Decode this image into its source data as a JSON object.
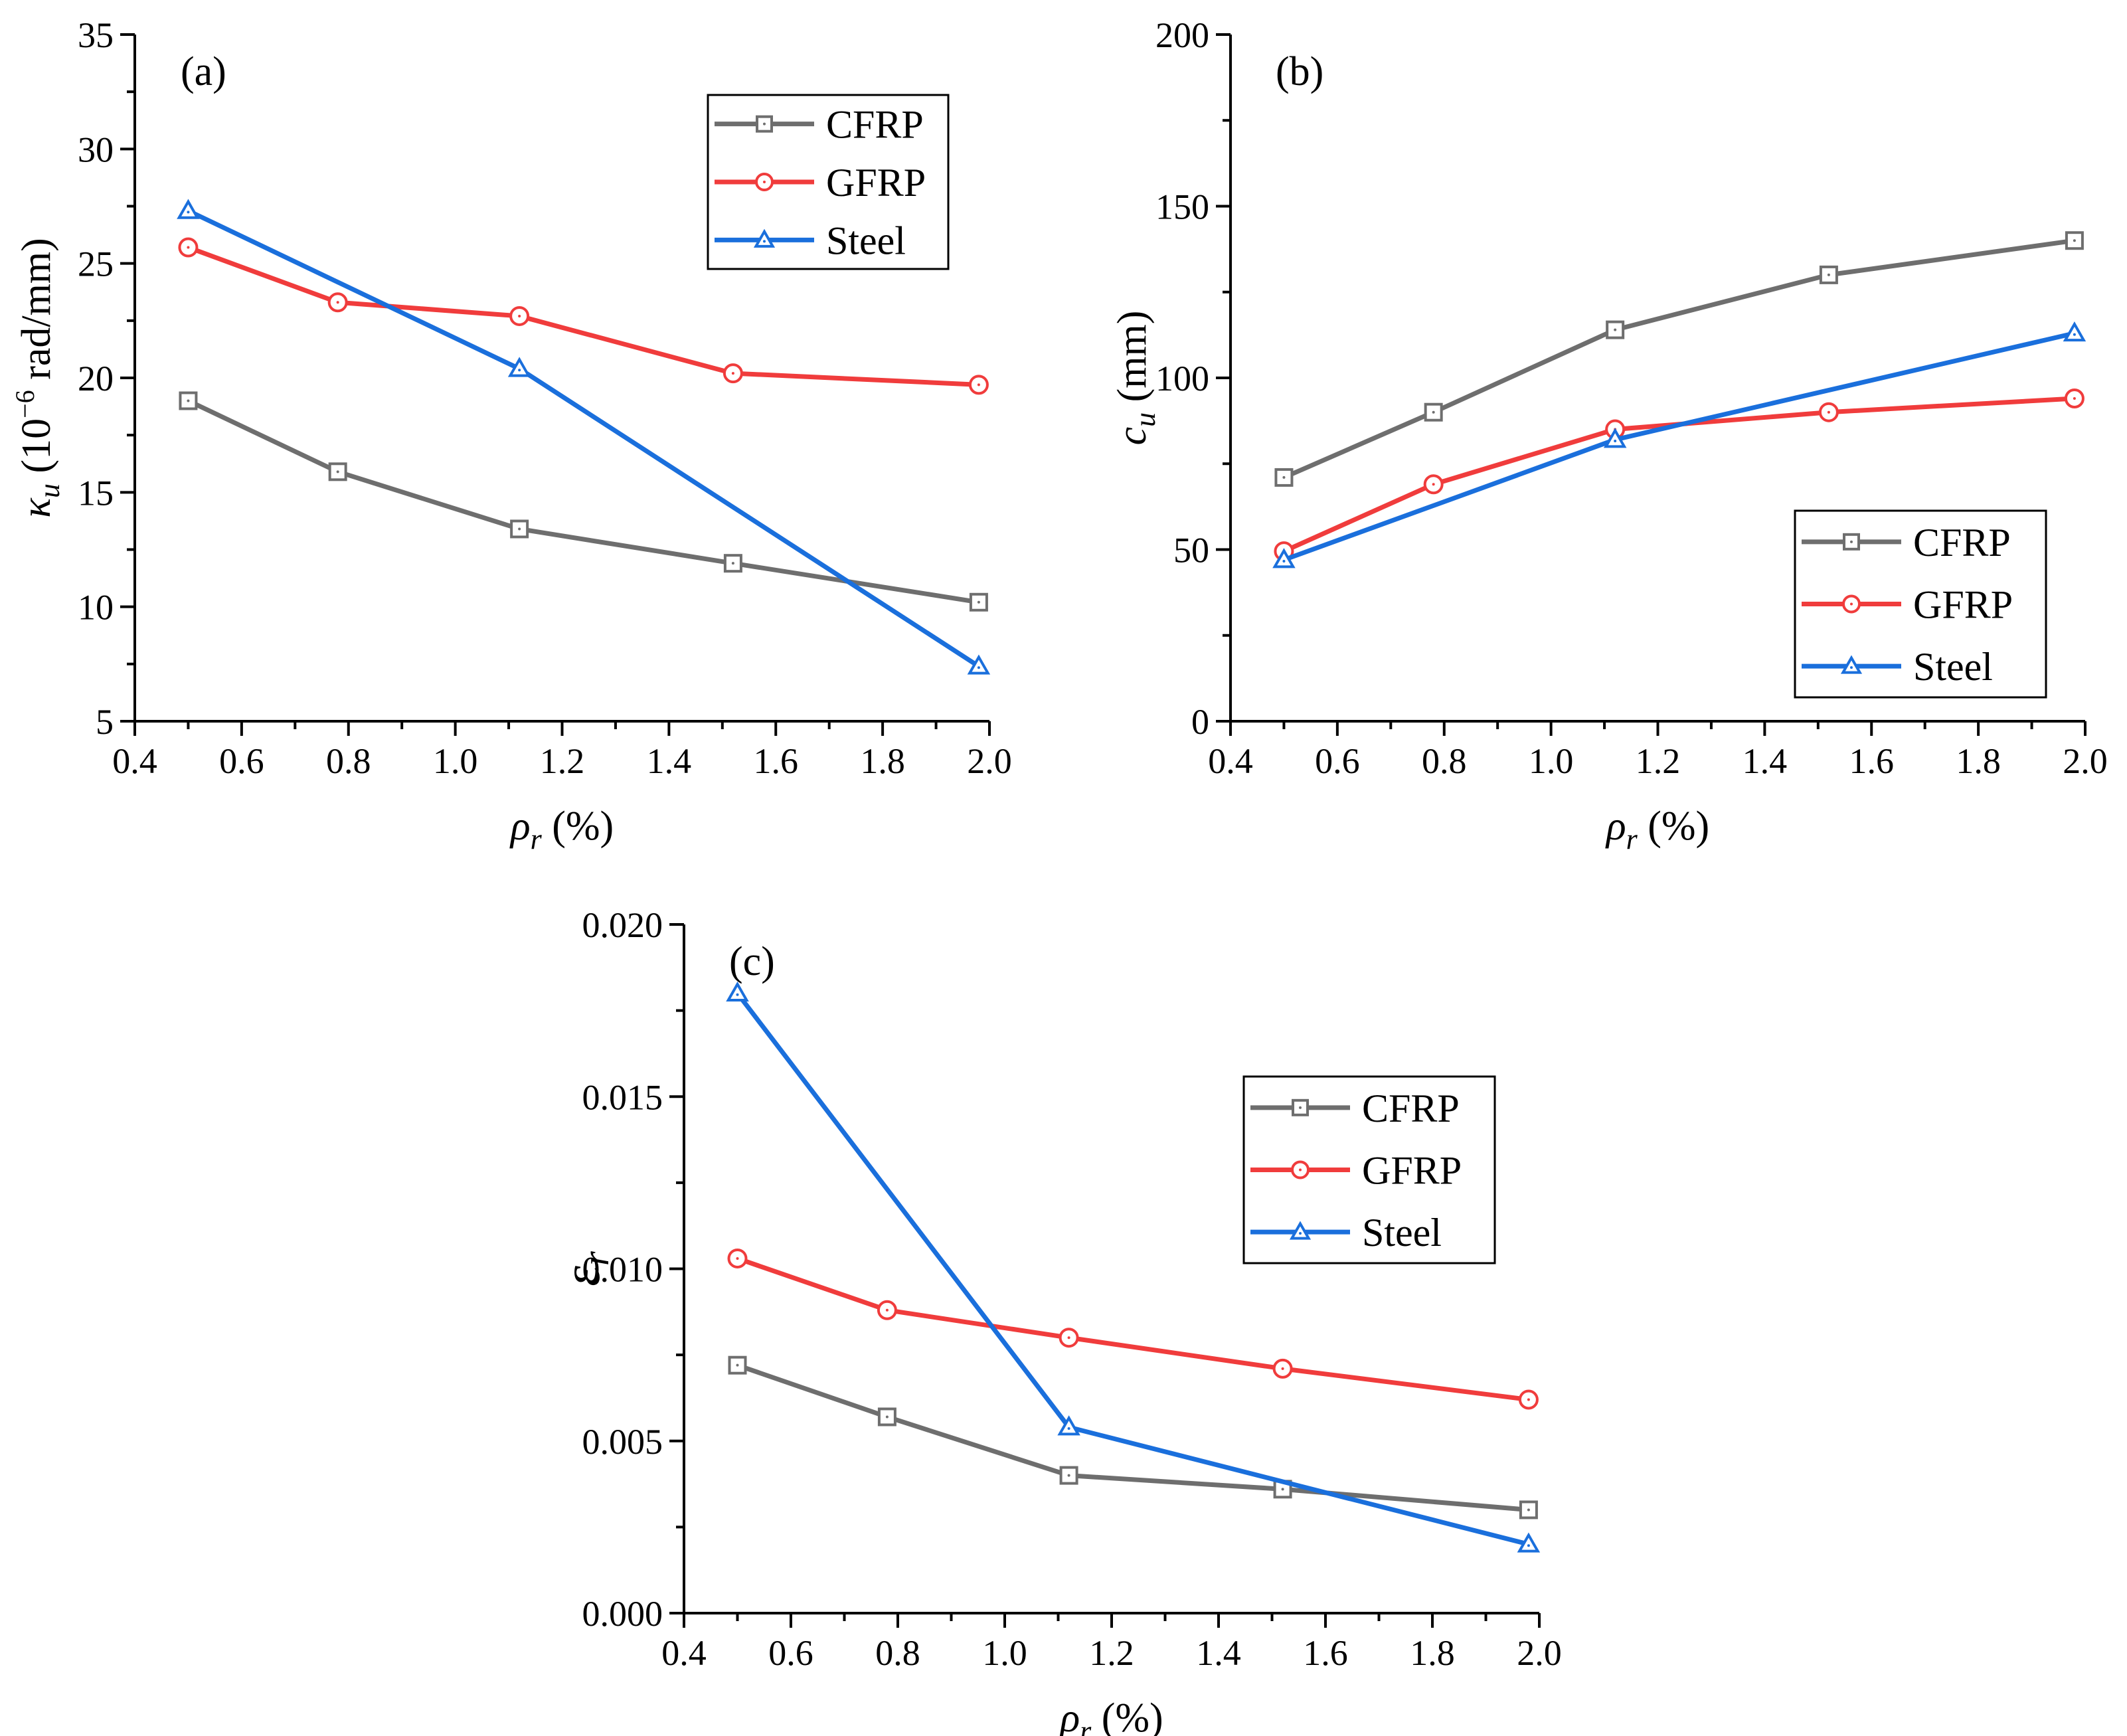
{
  "chart_data": [
    {
      "type": "line",
      "panel_label": "(a)",
      "xlabel_sym": "ρ",
      "xlabel_sub": "r",
      "xlabel_unit": "(%)",
      "ylabel_sym": "κ",
      "ylabel_sub": "u",
      "ylabel_pre": "(10",
      "ylabel_exp": "−6",
      "ylabel_post": "rad/mm)",
      "xlim": [
        0.4,
        2.0
      ],
      "ylim": [
        5,
        35
      ],
      "xticks": [
        "0.4",
        "0.6",
        "0.8",
        "1.0",
        "1.2",
        "1.4",
        "1.6",
        "1.8",
        "2.0"
      ],
      "yticks": [
        "5",
        "10",
        "15",
        "20",
        "25",
        "30",
        "35"
      ],
      "legend_position": "top-right",
      "series": [
        {
          "name": "CFRP",
          "color": "#6e6e6e",
          "marker": "square",
          "x": [
            0.5,
            0.78,
            1.12,
            1.52,
            1.98
          ],
          "y": [
            19.0,
            15.9,
            13.4,
            11.9,
            10.2
          ]
        },
        {
          "name": "GFRP",
          "color": "#f03c3c",
          "marker": "circle",
          "x": [
            0.5,
            0.78,
            1.12,
            1.52,
            1.98
          ],
          "y": [
            25.7,
            23.3,
            22.7,
            20.2,
            19.7
          ]
        },
        {
          "name": "Steel",
          "color": "#1a6fdc",
          "marker": "triangle",
          "x": [
            0.5,
            1.12,
            1.98
          ],
          "y": [
            27.3,
            20.4,
            7.4
          ]
        }
      ]
    },
    {
      "type": "line",
      "panel_label": "(b)",
      "xlabel_sym": "ρ",
      "xlabel_sub": "r",
      "xlabel_unit": "(%)",
      "ylabel_sym": "c",
      "ylabel_sub": "u",
      "ylabel_unit": "(mm)",
      "xlim": [
        0.4,
        2.0
      ],
      "ylim": [
        0,
        200
      ],
      "xticks": [
        "0.4",
        "0.6",
        "0.8",
        "1.0",
        "1.2",
        "1.4",
        "1.6",
        "1.8",
        "2.0"
      ],
      "yticks": [
        "0",
        "50",
        "100",
        "150",
        "200"
      ],
      "legend_position": "lower-right",
      "series": [
        {
          "name": "CFRP",
          "color": "#6e6e6e",
          "marker": "square",
          "x": [
            0.5,
            0.78,
            1.12,
            1.52,
            1.98
          ],
          "y": [
            71,
            90,
            114,
            130,
            140
          ]
        },
        {
          "name": "GFRP",
          "color": "#f03c3c",
          "marker": "circle",
          "x": [
            0.5,
            0.78,
            1.12,
            1.52,
            1.98
          ],
          "y": [
            49.5,
            69,
            85,
            90,
            94
          ]
        },
        {
          "name": "Steel",
          "color": "#1a6fdc",
          "marker": "triangle",
          "x": [
            0.5,
            1.12,
            1.98
          ],
          "y": [
            47,
            82,
            113
          ]
        }
      ]
    },
    {
      "type": "line",
      "panel_label": "(c)",
      "xlabel_sym": "ρ",
      "xlabel_sub": "r",
      "xlabel_unit": "(%)",
      "ylabel_sym": "ε",
      "ylabel_sub": "r",
      "xlim": [
        0.4,
        2.0
      ],
      "ylim": [
        0.0,
        0.02
      ],
      "xticks": [
        "0.4",
        "0.6",
        "0.8",
        "1.0",
        "1.2",
        "1.4",
        "1.6",
        "1.8",
        "2.0"
      ],
      "yticks": [
        "0.000",
        "0.005",
        "0.010",
        "0.015",
        "0.020"
      ],
      "legend_position": "top-right",
      "series": [
        {
          "name": "CFRP",
          "color": "#6e6e6e",
          "marker": "square",
          "x": [
            0.5,
            0.78,
            1.12,
            1.52,
            1.98
          ],
          "y": [
            0.0072,
            0.0057,
            0.004,
            0.0036,
            0.003
          ]
        },
        {
          "name": "GFRP",
          "color": "#f03c3c",
          "marker": "circle",
          "x": [
            0.5,
            0.78,
            1.12,
            1.52,
            1.98
          ],
          "y": [
            0.0103,
            0.0088,
            0.008,
            0.0071,
            0.0062
          ]
        },
        {
          "name": "Steel",
          "color": "#1a6fdc",
          "marker": "triangle",
          "x": [
            0.5,
            1.12,
            1.98
          ],
          "y": [
            0.018,
            0.0054,
            0.002
          ]
        }
      ]
    }
  ]
}
